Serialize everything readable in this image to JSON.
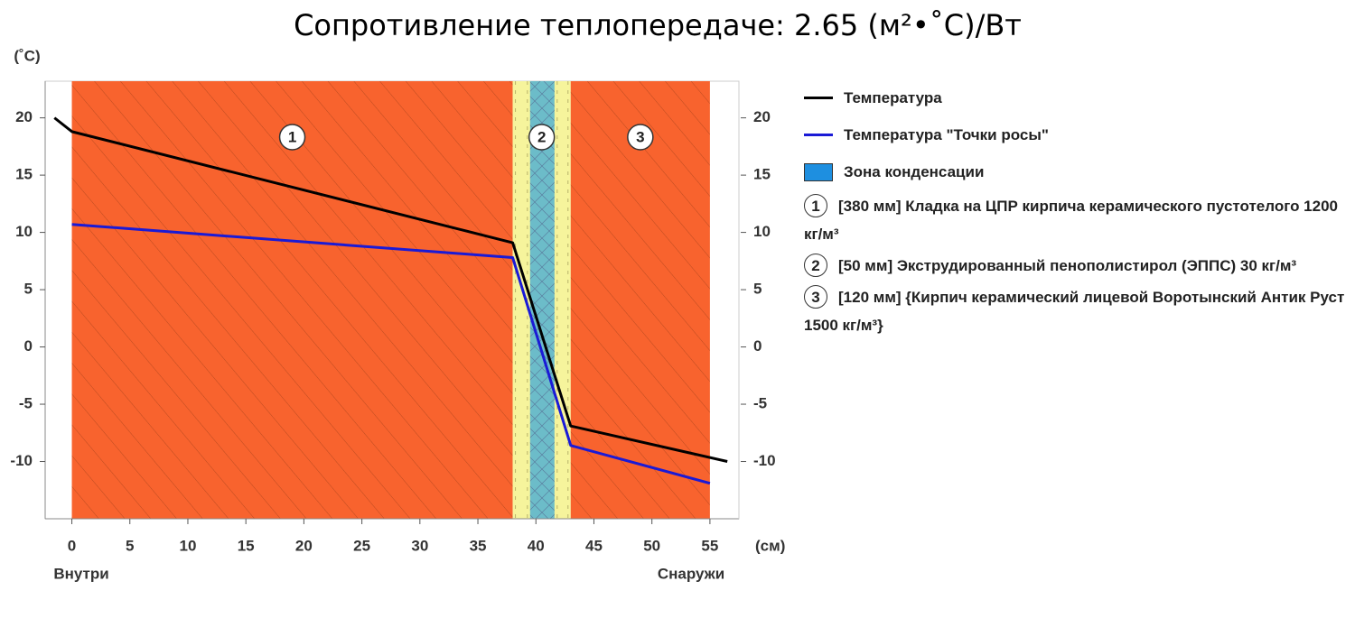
{
  "chart_data": {
    "type": "line",
    "title": "Сопротивление теплопередаче: 2.65 (м²•˚С)/Вт",
    "y_label": "(˚С)",
    "x_label": "(см)",
    "inside_label": "Внутри",
    "outside_label": "Снаружи",
    "xlim": [
      -2.3,
      57.5
    ],
    "ylim": [
      -15,
      23.2
    ],
    "xticks": [
      0,
      5,
      10,
      15,
      20,
      25,
      30,
      35,
      40,
      45,
      50,
      55
    ],
    "yticks": [
      -10,
      -5,
      0,
      5,
      10,
      15,
      20
    ],
    "series": [
      {
        "name": "Температура",
        "color": "#000000",
        "x": [
          -1.5,
          0,
          38,
          43,
          56.5
        ],
        "values": [
          20,
          18.8,
          9.1,
          -6.9,
          -10
        ]
      },
      {
        "name": "Температура \"Точки росы\"",
        "color": "#1a1ad6",
        "x": [
          0,
          38,
          43,
          55
        ],
        "values": [
          10.7,
          7.8,
          -8.6,
          -11.9
        ]
      }
    ],
    "condensation_zone": {
      "name": "Зона конденсации",
      "color": "#1e8fe0"
    },
    "layers": [
      {
        "number": "1",
        "start": 0,
        "end": 38,
        "color": "#f8632e",
        "description": "[380 мм] Кладка на ЦПР кирпича керамического пустотелого 1200 кг/м³"
      },
      {
        "number": "2",
        "start": 38,
        "end": 43,
        "color": "#f6f49c",
        "core_color": "#6cbcc9",
        "description": "[50 мм] Экструдированный пенополистирол (ЭППС) 30 кг/м³"
      },
      {
        "number": "3",
        "start": 43,
        "end": 55,
        "color": "#f8632e",
        "description": "[120 мм] {Кирпич керамический лицевой Воротынский Антик Руст 1500 кг/м³}"
      }
    ]
  }
}
